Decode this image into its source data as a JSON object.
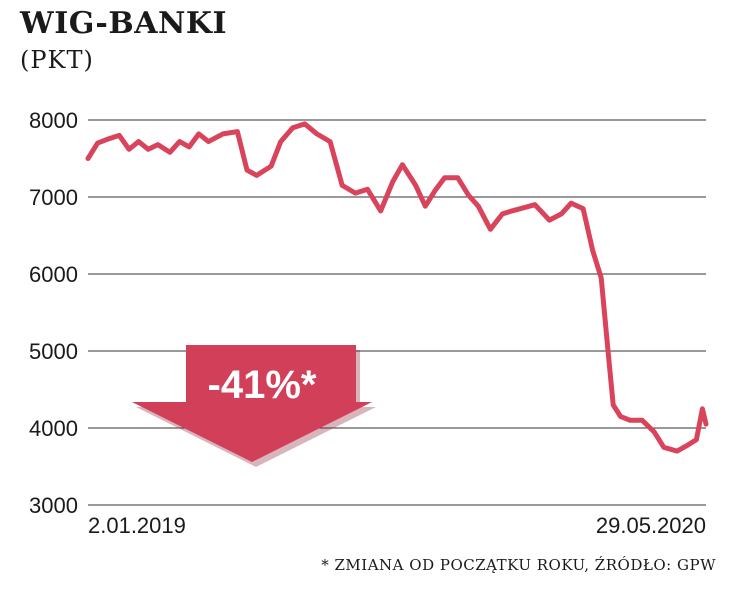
{
  "header": {
    "title": "WIG-BANKI",
    "subtitle": "(PKT)"
  },
  "footnote": "* ZMIANA OD POCZĄTKU ROKU, ŹRÓDŁO: GPW",
  "colors": {
    "line": "#d9445c",
    "badge": "#d23f58",
    "grid": "#333333"
  },
  "chart_data": {
    "type": "line",
    "title": "WIG-BANKI",
    "ylabel": "(PKT)",
    "ylim": [
      3000,
      8000
    ],
    "y_ticks": [
      3000,
      4000,
      5000,
      6000,
      7000,
      8000
    ],
    "y_tick_labels": [
      "3000",
      "4000",
      "5000",
      "6000",
      "7000",
      "8000"
    ],
    "x_tick_labels": [
      "2.01.2019",
      "29.05.2020"
    ],
    "x_range": [
      "2019-01-02",
      "2020-05-29"
    ],
    "grid": true,
    "annotation": "-41%*",
    "series": [
      {
        "name": "",
        "x": [
          "2019-01-02",
          "2019-01-10",
          "2019-01-18",
          "2019-01-28",
          "2019-02-05",
          "2019-02-13",
          "2019-02-21",
          "2019-03-01",
          "2019-03-11",
          "2019-03-19",
          "2019-03-27",
          "2019-04-04",
          "2019-04-12",
          "2019-04-24",
          "2019-05-06",
          "2019-05-14",
          "2019-05-22",
          "2019-06-03",
          "2019-06-11",
          "2019-06-21",
          "2019-07-01",
          "2019-07-11",
          "2019-07-22",
          "2019-08-01",
          "2019-08-12",
          "2019-08-22",
          "2019-09-02",
          "2019-09-12",
          "2019-09-20",
          "2019-10-01",
          "2019-10-09",
          "2019-10-17",
          "2019-10-25",
          "2019-11-05",
          "2019-11-14",
          "2019-11-22",
          "2019-12-02",
          "2019-12-12",
          "2019-12-20",
          "2020-01-08",
          "2020-01-20",
          "2020-01-30",
          "2020-02-07",
          "2020-02-17",
          "2020-02-25",
          "2020-03-03",
          "2020-03-09",
          "2020-03-13",
          "2020-03-19",
          "2020-03-27",
          "2020-04-06",
          "2020-04-16",
          "2020-04-24",
          "2020-05-05",
          "2020-05-13",
          "2020-05-21",
          "2020-05-26",
          "2020-05-29"
        ],
        "y": [
          7500,
          7700,
          7750,
          7800,
          7620,
          7720,
          7620,
          7680,
          7580,
          7720,
          7650,
          7820,
          7720,
          7820,
          7850,
          7350,
          7280,
          7400,
          7720,
          7900,
          7950,
          7820,
          7720,
          7150,
          7050,
          7100,
          6820,
          7200,
          7420,
          7150,
          6880,
          7080,
          7250,
          7250,
          7020,
          6880,
          6580,
          6780,
          6820,
          6900,
          6700,
          6780,
          6920,
          6850,
          6300,
          5950,
          4950,
          4300,
          4150,
          4100,
          4100,
          3950,
          3750,
          3700,
          3770,
          3850,
          4250,
          4050
        ]
      }
    ]
  }
}
